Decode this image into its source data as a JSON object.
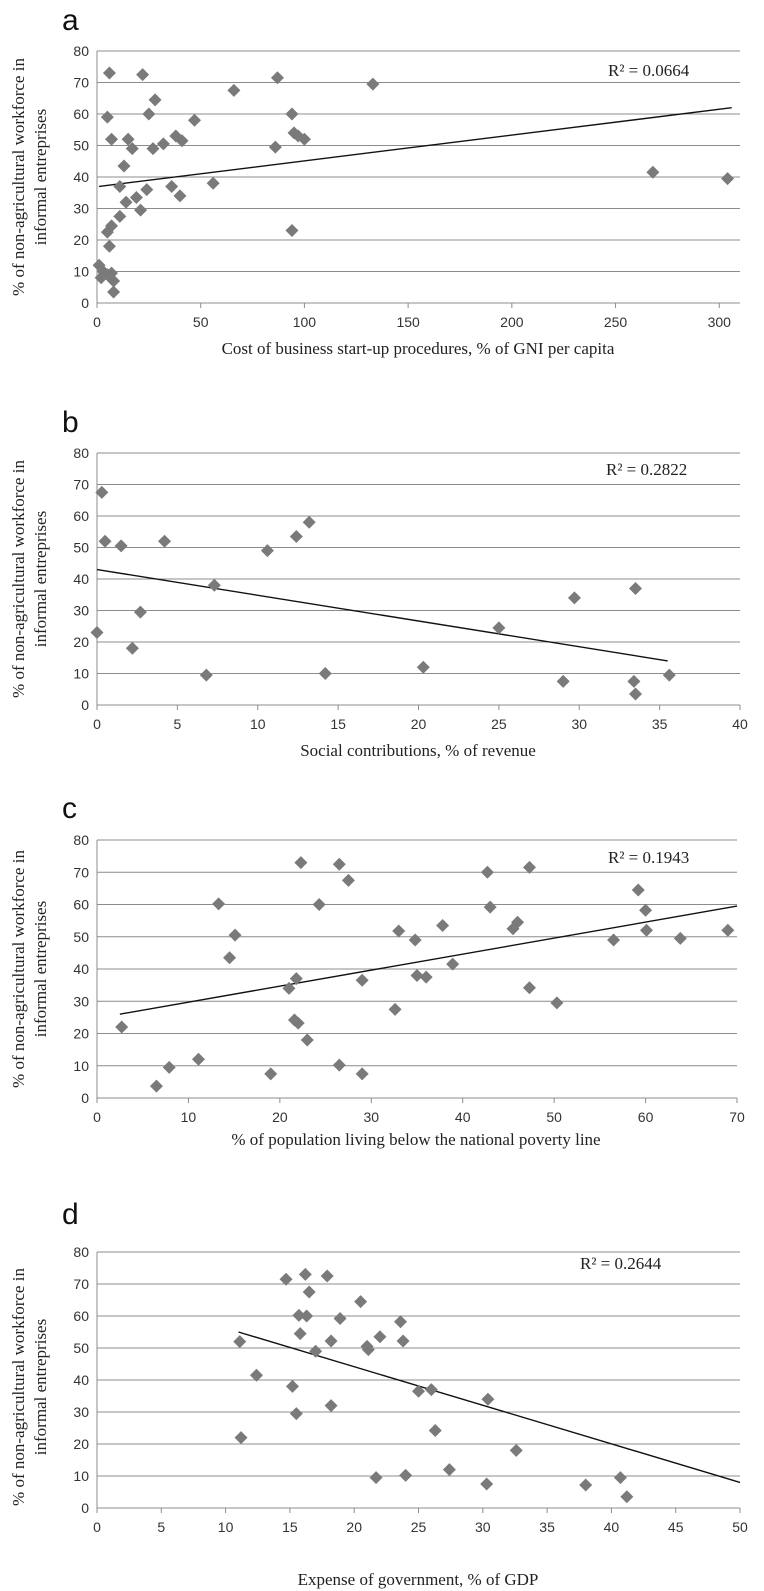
{
  "chart_data": [
    {
      "panel": "a",
      "type": "scatter",
      "xlabel": "Cost of business start-up procedures, % of GNI per capita",
      "ylabel": [
        "% of non-agricultural workforce in",
        "informal entreprises"
      ],
      "xlim": [
        0,
        310
      ],
      "ylim": [
        0,
        80
      ],
      "xticks": [
        0,
        50,
        100,
        150,
        200,
        250,
        300
      ],
      "yticks": [
        0,
        10,
        20,
        30,
        40,
        50,
        60,
        70,
        80
      ],
      "r2_label": "R² = 0.0664",
      "trendline": [
        [
          1,
          37
        ],
        [
          306,
          62
        ]
      ],
      "points": [
        [
          6,
          73
        ],
        [
          22,
          72.5
        ],
        [
          87,
          71.5
        ],
        [
          133,
          69.5
        ],
        [
          66,
          67.5
        ],
        [
          28,
          64.5
        ],
        [
          25,
          60
        ],
        [
          5,
          59
        ],
        [
          94,
          60
        ],
        [
          47,
          58
        ],
        [
          7,
          52
        ],
        [
          15,
          52
        ],
        [
          38,
          53
        ],
        [
          41,
          51.5
        ],
        [
          32,
          50.5
        ],
        [
          17,
          49
        ],
        [
          27,
          49
        ],
        [
          86,
          49.5
        ],
        [
          95,
          54
        ],
        [
          97,
          53
        ],
        [
          100,
          52
        ],
        [
          13,
          43.5
        ],
        [
          36,
          37
        ],
        [
          56,
          38
        ],
        [
          24,
          36
        ],
        [
          11,
          37
        ],
        [
          40,
          34
        ],
        [
          19,
          33.5
        ],
        [
          14,
          32
        ],
        [
          21,
          29.5
        ],
        [
          11,
          27.5
        ],
        [
          7,
          24.5
        ],
        [
          5,
          22.5
        ],
        [
          94,
          23
        ],
        [
          6,
          18
        ],
        [
          1,
          12
        ],
        [
          3,
          10
        ],
        [
          2,
          8
        ],
        [
          5,
          9
        ],
        [
          7,
          9.5
        ],
        [
          8,
          7
        ],
        [
          8,
          3.5
        ],
        [
          268,
          41.5
        ],
        [
          304,
          39.5
        ]
      ]
    },
    {
      "panel": "b",
      "type": "scatter",
      "xlabel": "Social contributions, % of revenue",
      "ylabel": [
        "% of non-agricultural workforce in",
        "informal entreprises"
      ],
      "xlim": [
        0,
        40
      ],
      "ylim": [
        0,
        80
      ],
      "xticks": [
        0,
        5,
        10,
        15,
        20,
        25,
        30,
        35,
        40
      ],
      "yticks": [
        0,
        10,
        20,
        30,
        40,
        50,
        60,
        70,
        80
      ],
      "r2_label": "R² = 0.2822",
      "trendline": [
        [
          0,
          43
        ],
        [
          35.5,
          14
        ]
      ],
      "points": [
        [
          0.3,
          67.5
        ],
        [
          0.5,
          52
        ],
        [
          1.5,
          50.5
        ],
        [
          4.2,
          52
        ],
        [
          10.6,
          49
        ],
        [
          12.4,
          53.5
        ],
        [
          13.2,
          58
        ],
        [
          7.3,
          38
        ],
        [
          2.7,
          29.5
        ],
        [
          0,
          23
        ],
        [
          2.2,
          18
        ],
        [
          6.8,
          9.5
        ],
        [
          14.2,
          10
        ],
        [
          20.3,
          12
        ],
        [
          25,
          24.5
        ],
        [
          29,
          7.5
        ],
        [
          29.7,
          34
        ],
        [
          33.5,
          37
        ],
        [
          33.4,
          7.5
        ],
        [
          33.5,
          3.5
        ],
        [
          35.6,
          9.5
        ]
      ]
    },
    {
      "panel": "c",
      "type": "scatter",
      "xlabel": "% of population living below the national poverty line",
      "ylabel": [
        "% of non-agricultural workforce in",
        "informal entreprises"
      ],
      "xlim": [
        0,
        70
      ],
      "ylim": [
        0,
        80
      ],
      "xticks": [
        0,
        10,
        20,
        30,
        40,
        50,
        60,
        70
      ],
      "yticks": [
        0,
        10,
        20,
        30,
        40,
        50,
        60,
        70,
        80
      ],
      "r2_label": "R² = 0.1943",
      "trendline": [
        [
          2.5,
          26
        ],
        [
          70,
          59.5
        ]
      ],
      "points": [
        [
          22.3,
          73
        ],
        [
          26.5,
          72.5
        ],
        [
          47.3,
          71.5
        ],
        [
          42.7,
          70
        ],
        [
          27.5,
          67.5
        ],
        [
          59.2,
          64.5
        ],
        [
          13.3,
          60.2
        ],
        [
          24.3,
          60
        ],
        [
          43,
          59.2
        ],
        [
          60,
          58.2
        ],
        [
          15.1,
          50.5
        ],
        [
          33,
          51.8
        ],
        [
          34.8,
          49
        ],
        [
          37.8,
          53.5
        ],
        [
          45.5,
          52.5
        ],
        [
          46,
          54.5
        ],
        [
          56.5,
          49
        ],
        [
          60.1,
          52
        ],
        [
          63.8,
          49.5
        ],
        [
          69,
          52
        ],
        [
          14.5,
          43.5
        ],
        [
          38.9,
          41.5
        ],
        [
          21,
          34
        ],
        [
          21.8,
          37
        ],
        [
          29,
          36.5
        ],
        [
          35,
          38
        ],
        [
          36,
          37.5
        ],
        [
          47.3,
          34.2
        ],
        [
          50.3,
          29.5
        ],
        [
          32.6,
          27.5
        ],
        [
          21.6,
          24.2
        ],
        [
          22,
          23.2
        ],
        [
          2.7,
          22
        ],
        [
          23,
          18
        ],
        [
          11.1,
          12
        ],
        [
          7.9,
          9.5
        ],
        [
          6.5,
          3.7
        ],
        [
          19,
          7.5
        ],
        [
          26.5,
          10.2
        ],
        [
          29,
          7.5
        ]
      ]
    },
    {
      "panel": "d",
      "type": "scatter",
      "xlabel": "Expense of government, % of GDP",
      "ylabel": [
        "% of non-agricultural workforce in",
        "informal entreprises"
      ],
      "xlim": [
        0,
        50
      ],
      "ylim": [
        0,
        80
      ],
      "xticks": [
        0,
        5,
        10,
        15,
        20,
        25,
        30,
        35,
        40,
        45,
        50
      ],
      "yticks": [
        0,
        10,
        20,
        30,
        40,
        50,
        60,
        70,
        80
      ],
      "r2_label": "R² = 0.2644",
      "trendline": [
        [
          11,
          55
        ],
        [
          50,
          8
        ]
      ],
      "points": [
        [
          14.7,
          71.5
        ],
        [
          16.2,
          73
        ],
        [
          17.9,
          72.5
        ],
        [
          16.5,
          67.5
        ],
        [
          20.5,
          64.5
        ],
        [
          15.7,
          60.2
        ],
        [
          16.3,
          60
        ],
        [
          18.9,
          59.2
        ],
        [
          23.6,
          58.2
        ],
        [
          15.8,
          54.5
        ],
        [
          18.2,
          52.2
        ],
        [
          22,
          53.5
        ],
        [
          23.8,
          52.2
        ],
        [
          17,
          49
        ],
        [
          21,
          50.5
        ],
        [
          21.1,
          49.5
        ],
        [
          11.1,
          52
        ],
        [
          12.4,
          41.5
        ],
        [
          15.2,
          38
        ],
        [
          25,
          36.5
        ],
        [
          26,
          37
        ],
        [
          18.2,
          32
        ],
        [
          15.5,
          29.5
        ],
        [
          30.4,
          34
        ],
        [
          26.3,
          24.2
        ],
        [
          11.2,
          22
        ],
        [
          32.6,
          18
        ],
        [
          21.7,
          9.5
        ],
        [
          24,
          10.2
        ],
        [
          27.4,
          12
        ],
        [
          30.3,
          7.5
        ],
        [
          38,
          7.2
        ],
        [
          40.7,
          9.5
        ],
        [
          41.2,
          3.5
        ]
      ]
    }
  ]
}
